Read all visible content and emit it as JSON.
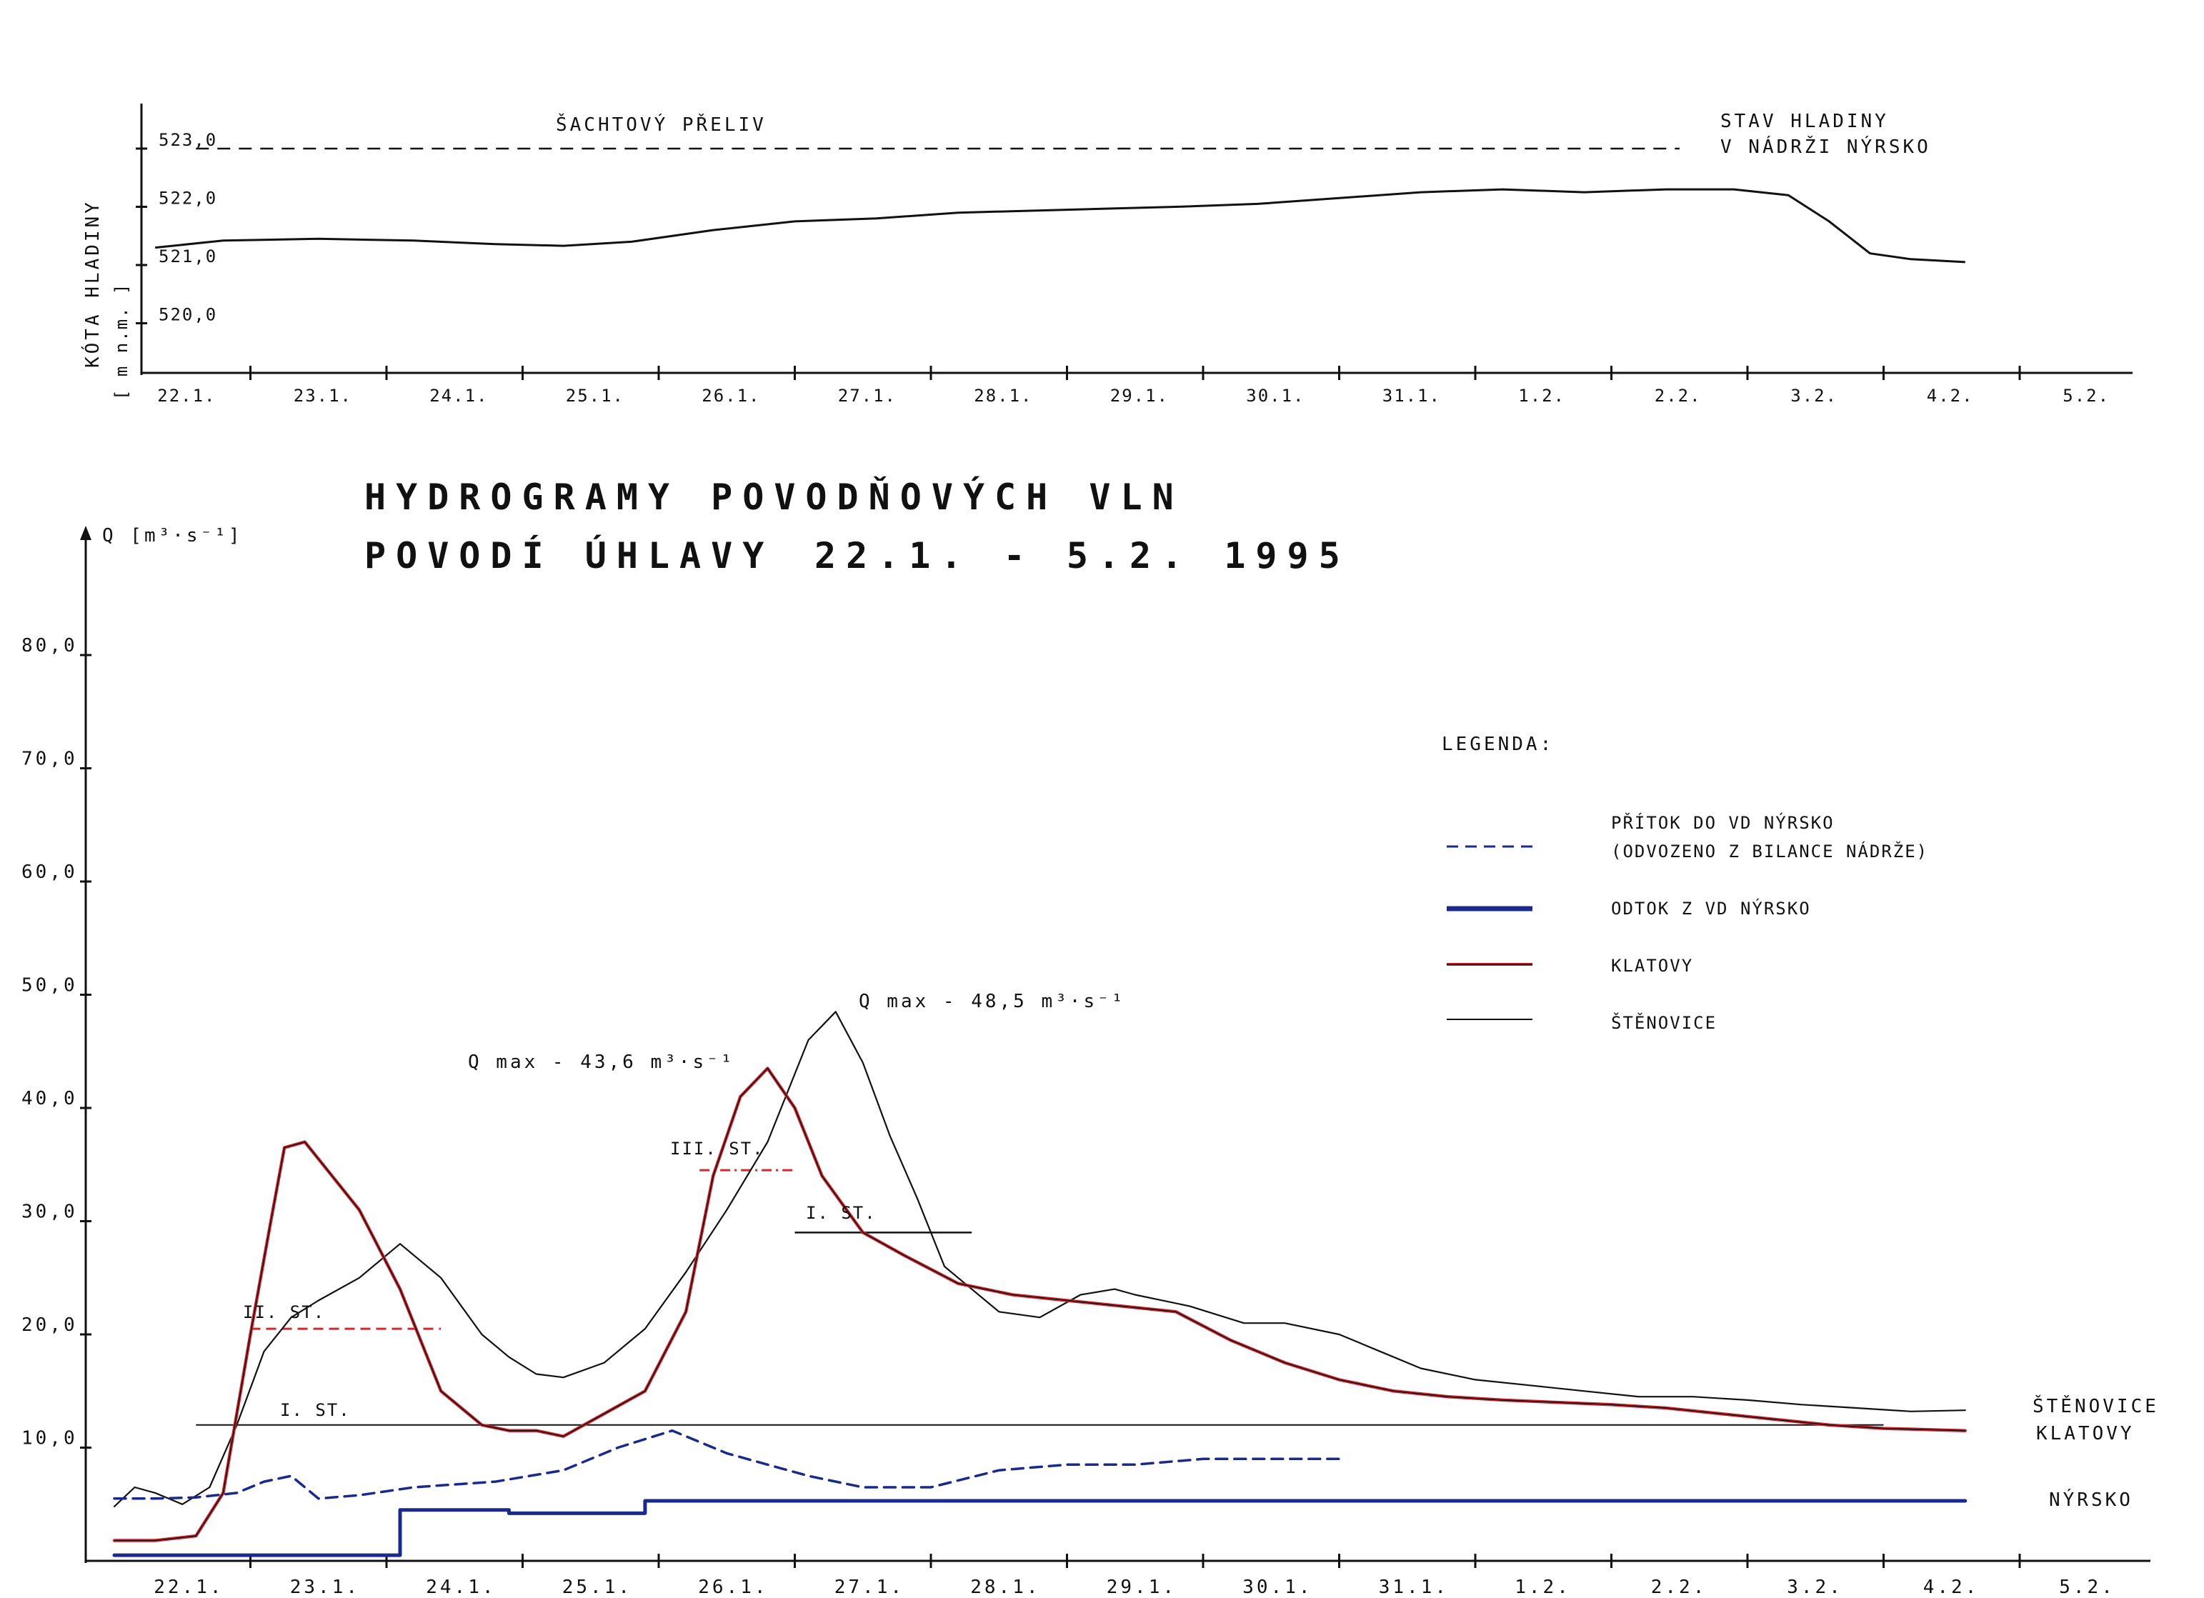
{
  "title": {
    "line1": "HYDROGRAMY POVODŇOVÝCH VLN",
    "line2_left": "POVODÍ ÚHLAVY",
    "line2_right": "22.1. - 5.2. 1995"
  },
  "top_chart": {
    "ylabel": "KÓTA HLADINY",
    "yunit": "[ m n.m. ]",
    "yticks": [
      "523,0",
      "522,0",
      "521,0",
      "520,0"
    ],
    "xticks": [
      "22.1.",
      "23.1.",
      "24.1.",
      "25.1.",
      "26.1.",
      "27.1.",
      "28.1.",
      "29.1.",
      "30.1.",
      "31.1.",
      "1.2.",
      "2.2.",
      "3.2.",
      "4.2.",
      "5.2."
    ],
    "spillway_label": "ŠACHTOVÝ PŘELIV",
    "curve_label_1": "STAV HLADINY",
    "curve_label_2": "V NÁDRŽI NÝRSKO"
  },
  "bottom_chart": {
    "ylabel": "Q [m³·s⁻¹]",
    "yticks": [
      "80,0",
      "70,0",
      "60,0",
      "50,0",
      "40,0",
      "30,0",
      "20,0",
      "10,0"
    ],
    "xticks": [
      "22.1.",
      "23.1.",
      "24.1.",
      "25.1.",
      "26.1.",
      "27.1.",
      "28.1.",
      "29.1.",
      "30.1.",
      "31.1.",
      "1.2.",
      "2.2.",
      "3.2.",
      "4.2.",
      "5.2."
    ],
    "annotations": {
      "qmax_klatovy": "Q max - 43,6 m³·s⁻¹",
      "qmax_stenovice": "Q max - 48,5 m³·s⁻¹",
      "st1_a": "I. ST.",
      "st2": "II. ST.",
      "st3": "III. ST.",
      "st1_b": "I. ST."
    },
    "end_labels": {
      "stenovice": "ŠTĚNOVICE",
      "klatovy": "KLATOVY",
      "nyrsko": "NÝRSKO"
    }
  },
  "legend": {
    "title": "LEGENDA:",
    "items": [
      {
        "label": "PŘÍTOK DO VD NÝRSKO",
        "sublabel": "(ODVOZENO Z BILANCE NÁDRŽE)",
        "style": "dashed",
        "color": "#1a2a8a"
      },
      {
        "label": "ODTOK Z VD NÝRSKO",
        "style": "thick",
        "color": "#1a2a8a"
      },
      {
        "label": "KLATOVY",
        "style": "solid",
        "color": "#d8262f"
      },
      {
        "label": "ŠTĚNOVICE",
        "style": "thin",
        "color": "#111111"
      }
    ]
  },
  "colors": {
    "ink": "#111111",
    "blue": "#1a2a8a",
    "red": "#d8262f"
  },
  "chart_data": [
    {
      "type": "line",
      "ylabel": "KÓTA HLADINY [m n.m.]",
      "ylim": [
        519.5,
        523.5
      ],
      "x_unit": "days",
      "series": [
        {
          "name": "ŠACHTOVÝ PŘELIV",
          "x": [
            0.6,
            11.5
          ],
          "values": [
            523.0,
            523.0
          ]
        },
        {
          "name": "STAV HLADINY V NÁDRŽI NÝRSKO",
          "x": [
            0.3,
            0.8,
            1.5,
            2.2,
            2.8,
            3.3,
            3.8,
            4.4,
            5.0,
            5.6,
            6.2,
            7.0,
            7.8,
            8.4,
            9.0,
            9.6,
            10.2,
            10.8,
            11.4,
            11.9,
            12.3,
            12.6,
            12.9,
            13.2,
            13.6
          ],
          "values": [
            521.3,
            521.42,
            521.45,
            521.42,
            521.36,
            521.33,
            521.4,
            521.6,
            521.75,
            521.8,
            521.9,
            521.95,
            522.0,
            522.05,
            522.15,
            522.25,
            522.3,
            522.25,
            522.3,
            522.3,
            522.2,
            521.75,
            521.2,
            521.1,
            521.05
          ]
        }
      ]
    },
    {
      "type": "line",
      "ylabel": "Q [m³·s⁻¹]",
      "ylim": [
        0,
        85
      ],
      "x_unit": "days",
      "series": [
        {
          "name": "ŠTĚNOVICE",
          "x": [
            0.0,
            0.15,
            0.3,
            0.5,
            0.7,
            0.9,
            1.1,
            1.3,
            1.5,
            1.8,
            2.1,
            2.4,
            2.7,
            2.9,
            3.1,
            3.3,
            3.6,
            3.9,
            4.2,
            4.5,
            4.8,
            5.1,
            5.3,
            5.5,
            5.7,
            5.9,
            6.1,
            6.5,
            6.8,
            7.1,
            7.35,
            7.5,
            7.9,
            8.3,
            8.6,
            9.0,
            9.3,
            9.6,
            10.0,
            10.4,
            10.8,
            11.2,
            11.6,
            12.0,
            12.4,
            12.8,
            13.2,
            13.6
          ],
          "values": [
            4.8,
            6.5,
            6.0,
            5.0,
            6.5,
            12.0,
            18.5,
            21.5,
            23.0,
            25.0,
            28.0,
            25.0,
            20.0,
            18.0,
            16.5,
            16.2,
            17.5,
            20.5,
            25.5,
            31.0,
            37.0,
            46.0,
            48.5,
            44.0,
            37.5,
            32.0,
            26.0,
            22.0,
            21.5,
            23.5,
            24.0,
            23.5,
            22.5,
            21.0,
            21.0,
            20.0,
            18.5,
            17.0,
            16.0,
            15.5,
            15.0,
            14.5,
            14.5,
            14.2,
            13.8,
            13.5,
            13.2,
            13.3
          ]
        },
        {
          "name": "KLATOVY",
          "x": [
            0.0,
            0.3,
            0.6,
            0.8,
            1.0,
            1.15,
            1.25,
            1.4,
            1.6,
            1.8,
            2.1,
            2.4,
            2.7,
            2.9,
            3.1,
            3.3,
            3.6,
            3.9,
            4.2,
            4.4,
            4.6,
            4.8,
            5.0,
            5.2,
            5.5,
            5.8,
            6.2,
            6.6,
            7.0,
            7.4,
            7.8,
            8.2,
            8.6,
            9.0,
            9.4,
            9.8,
            10.2,
            10.6,
            11.0,
            11.4,
            11.8,
            12.2,
            12.6,
            13.0,
            13.6
          ],
          "values": [
            1.8,
            1.8,
            2.2,
            6.0,
            20.0,
            30.0,
            36.5,
            37.0,
            34.0,
            31.0,
            24.0,
            15.0,
            12.0,
            11.5,
            11.5,
            11.0,
            13.0,
            15.0,
            22.0,
            34.0,
            41.0,
            43.5,
            40.0,
            34.0,
            29.0,
            27.0,
            24.5,
            23.5,
            23.0,
            22.5,
            22.0,
            19.5,
            17.5,
            16.0,
            15.0,
            14.5,
            14.2,
            14.0,
            13.8,
            13.5,
            13.0,
            12.5,
            12.0,
            11.7,
            11.5
          ]
        },
        {
          "name": "PŘÍTOK DO VD NÝRSKO",
          "x": [
            0.0,
            0.3,
            0.6,
            0.9,
            1.1,
            1.3,
            1.5,
            1.8,
            2.2,
            2.8,
            3.3,
            3.7,
            4.1,
            4.5,
            4.8,
            5.1,
            5.5,
            6.0,
            6.5,
            7.0,
            7.5,
            8.0,
            8.5,
            9.0
          ],
          "values": [
            5.5,
            5.5,
            5.6,
            6.0,
            7.0,
            7.5,
            5.5,
            5.8,
            6.5,
            7.0,
            8.0,
            10.0,
            11.5,
            9.5,
            8.5,
            7.5,
            6.5,
            6.5,
            8.0,
            8.5,
            8.5,
            9.0,
            9.0,
            9.0
          ]
        },
        {
          "name": "ODTOK Z VD NÝRSKO",
          "x": [
            0.0,
            2.1,
            2.1,
            2.9,
            2.9,
            3.9,
            3.9,
            13.6
          ],
          "values": [
            0.5,
            0.5,
            4.5,
            4.5,
            4.2,
            4.2,
            5.3,
            5.3
          ]
        }
      ],
      "thresholds": [
        {
          "label": "I. ST.",
          "x": [
            0.6,
            13.0
          ],
          "value": 12.0
        },
        {
          "label": "II. ST.",
          "x": [
            1.0,
            2.4
          ],
          "value": 20.5
        },
        {
          "label": "III. ST.",
          "x": [
            4.3,
            5.0
          ],
          "value": 34.5
        },
        {
          "label": "I. ST.",
          "x": [
            5.0,
            6.3
          ],
          "value": 29.0
        }
      ]
    }
  ]
}
